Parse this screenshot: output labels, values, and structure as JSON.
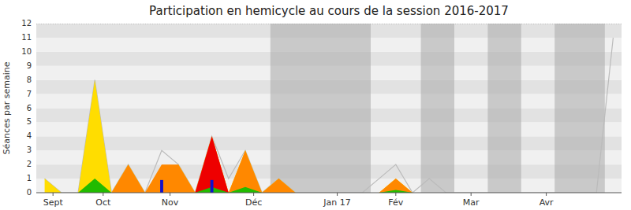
{
  "chart_data": {
    "type": "area",
    "title": "Participation en hemicycle au cours de la session 2016-2017",
    "y_label": "Séances par semaine",
    "x": [
      0,
      1,
      2,
      3,
      4,
      5,
      6,
      7,
      8,
      9,
      10,
      11,
      12,
      13,
      14,
      15,
      16,
      17,
      18,
      19,
      20,
      21,
      22,
      23,
      24,
      25,
      26,
      27,
      28,
      29,
      30,
      31,
      32,
      33,
      34
    ],
    "xlim": [
      -0.5,
      34.5
    ],
    "xticks": [
      {
        "value": 0.5,
        "label": "Sept"
      },
      {
        "value": 3.5,
        "label": "Oct"
      },
      {
        "value": 7.5,
        "label": "Nov"
      },
      {
        "value": 12.5,
        "label": "Déc"
      },
      {
        "value": 17.5,
        "label": "Jan 17"
      },
      {
        "value": 21.0,
        "label": "Fév"
      },
      {
        "value": 25.5,
        "label": "Mar"
      },
      {
        "value": 30.0,
        "label": "Avr"
      }
    ],
    "ylim": [
      0,
      12
    ],
    "yticks": [
      0,
      1,
      2,
      3,
      4,
      5,
      6,
      7,
      8,
      9,
      10,
      11,
      12
    ],
    "series": [
      {
        "type": "line",
        "color": "#bbbbbb",
        "values": [
          1,
          0,
          0,
          8,
          0,
          2,
          0,
          3,
          2,
          0,
          4,
          1,
          3,
          0,
          1,
          0,
          0,
          0,
          0,
          0,
          1,
          2,
          0,
          1,
          0,
          0,
          0,
          0,
          0,
          0,
          0,
          0,
          0,
          0,
          11
        ]
      },
      {
        "type": "area",
        "color": "#ffdd00",
        "values": [
          1,
          0,
          0,
          8,
          0,
          2,
          0,
          1,
          2,
          0,
          4,
          0,
          3,
          0,
          1,
          0,
          0,
          0,
          0,
          0,
          0,
          1,
          0,
          0,
          0,
          0,
          0,
          0,
          0,
          0,
          0,
          0,
          0,
          0,
          0
        ]
      },
      {
        "type": "area",
        "color": "#ff8800",
        "values": [
          0,
          0,
          0,
          0,
          0,
          2,
          0,
          2,
          2,
          0,
          4,
          0,
          3,
          0,
          1,
          0,
          0,
          0,
          0,
          0,
          0,
          1,
          0,
          0,
          0,
          0,
          0,
          0,
          0,
          0,
          0,
          0,
          0,
          0,
          0
        ]
      },
      {
        "type": "area",
        "color": "#ee0000",
        "values": [
          0,
          0,
          0,
          0,
          0,
          0,
          0,
          0,
          0,
          0,
          4,
          0,
          0,
          0,
          0,
          0,
          0,
          0,
          0,
          0,
          0,
          0,
          0,
          0,
          0,
          0,
          0,
          0,
          0,
          0,
          0,
          0,
          0,
          0,
          0
        ]
      },
      {
        "type": "area",
        "color": "#22bb00",
        "values": [
          0,
          0,
          0,
          1,
          0,
          0,
          0,
          0,
          0,
          0,
          0.4,
          0,
          0.4,
          0,
          0,
          0,
          0,
          0,
          0,
          0,
          0,
          0.2,
          0,
          0,
          0,
          0,
          0,
          0,
          0,
          0,
          0,
          0,
          0,
          0,
          0
        ]
      },
      {
        "type": "bar",
        "color": "#1111cc",
        "x": [
          7,
          10
        ],
        "values": [
          0.9,
          0.9
        ]
      }
    ],
    "bands": {
      "color": "#aaaaaa",
      "ranges": [
        [
          13.5,
          19.5
        ],
        [
          22.5,
          24.5
        ],
        [
          26.5,
          28.5
        ],
        [
          30.5,
          33.5
        ]
      ]
    }
  }
}
